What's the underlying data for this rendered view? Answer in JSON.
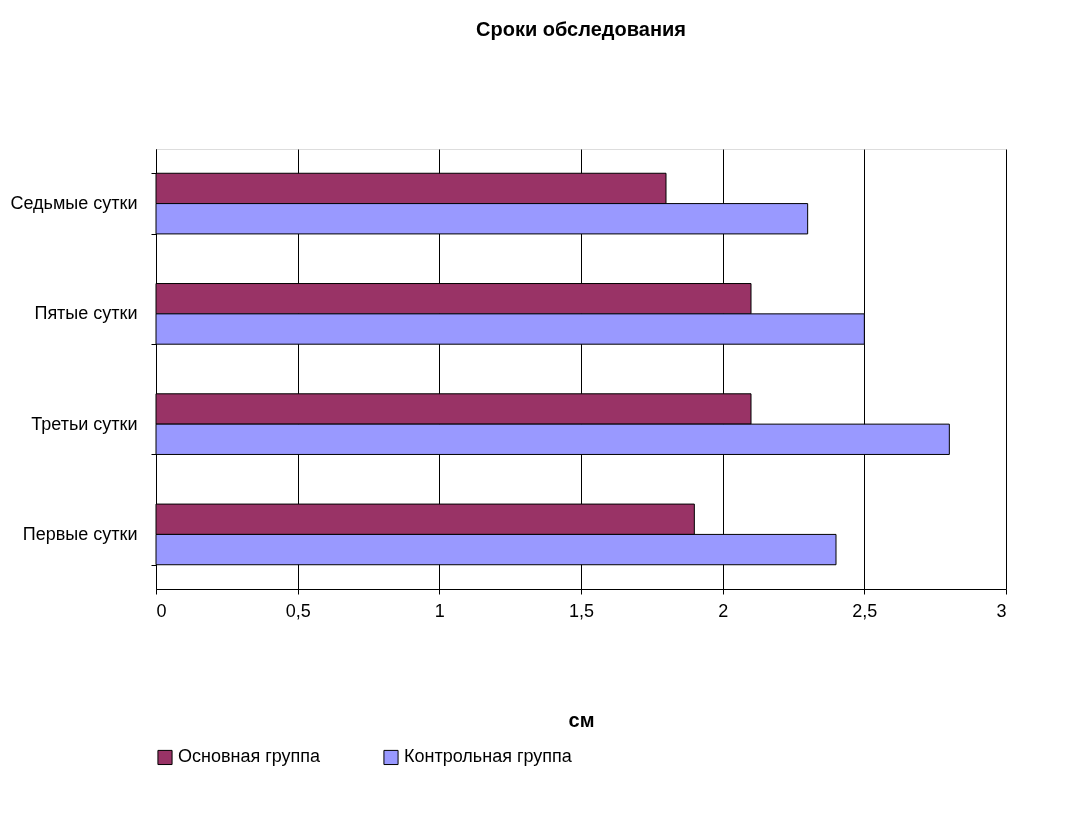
{
  "chart_data": {
    "type": "bar",
    "orientation": "horizontal",
    "title": "Сроки обследования",
    "xlabel": "см",
    "categories": [
      "Седьмые сутки",
      "Пятые сутки",
      "Третьи сутки",
      "Первые сутки"
    ],
    "series": [
      {
        "name": "Основная группа",
        "color": "#993366",
        "values": [
          1.8,
          2.1,
          2.1,
          1.9
        ]
      },
      {
        "name": "Контрольная группа",
        "color": "#9999ff",
        "values": [
          2.3,
          2.5,
          2.8,
          2.4
        ]
      }
    ],
    "xlim": [
      0,
      3
    ],
    "xticks": [
      0,
      {
        "value": 0.5,
        "label": "0,5"
      },
      1,
      {
        "value": 1.5,
        "label": "1,5"
      },
      2,
      {
        "value": 2.5,
        "label": "2,5"
      },
      3
    ],
    "grid": "x",
    "legend": "bottom"
  }
}
